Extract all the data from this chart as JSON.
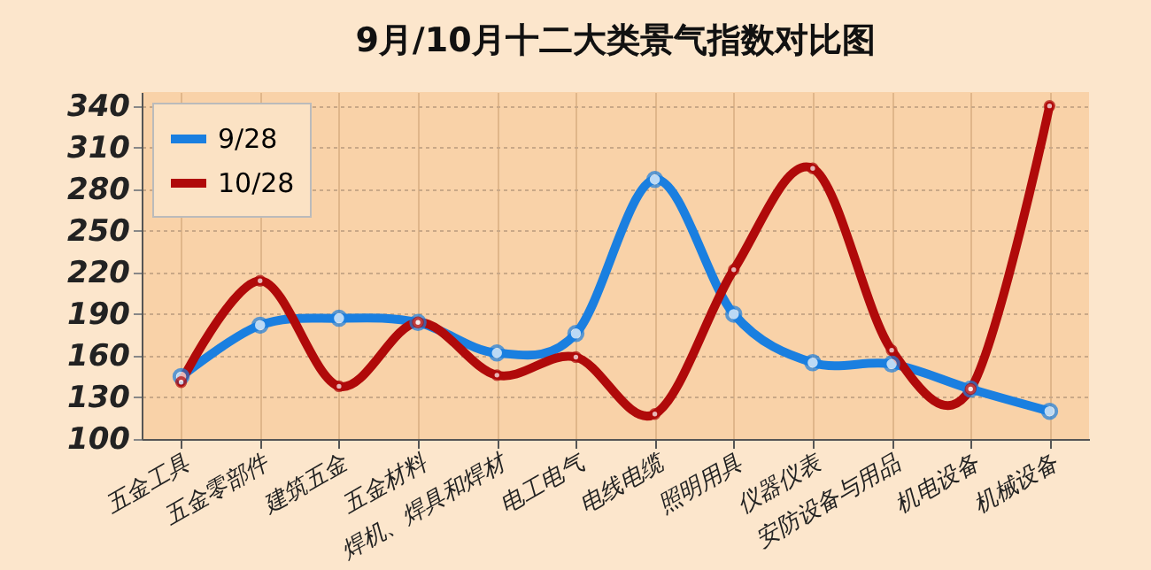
{
  "chart_data": {
    "type": "line",
    "title": "9月/10月十二大类景气指数对比图",
    "categories": [
      "五金工具",
      "五金零部件",
      "建筑五金",
      "五金材料",
      "焊机、焊具和焊材",
      "电工电气",
      "电线电缆",
      "照明用具",
      "仪器仪表",
      "安防设备与用品",
      "机电设备",
      "机械设备"
    ],
    "series": [
      {
        "name": "9/28",
        "color": "#1a7fe0",
        "values": [
          145,
          182,
          187,
          184,
          162,
          176,
          287,
          190,
          155,
          154,
          136,
          120
        ]
      },
      {
        "name": "10/28",
        "color": "#b00a0a",
        "values": [
          141,
          214,
          138,
          184,
          146,
          159,
          118,
          222,
          295,
          164,
          136,
          340
        ]
      }
    ],
    "ylim": [
      100,
      350
    ],
    "yticks": [
      100,
      130,
      160,
      190,
      220,
      250,
      280,
      310,
      340
    ],
    "grid": true,
    "legend": "top left",
    "marker": "circle"
  }
}
